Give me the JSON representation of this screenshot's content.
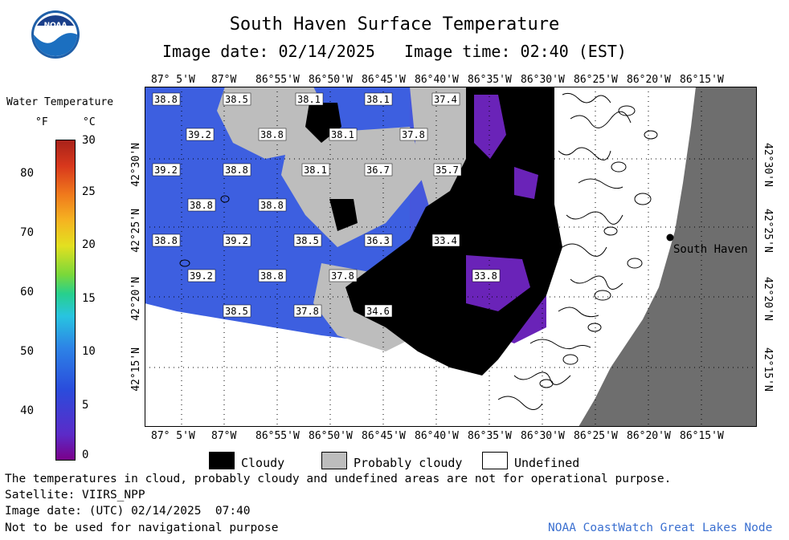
{
  "header": {
    "title": "South Haven Surface Temperature",
    "image_date_label": "Image date: 02/14/2025",
    "image_time_label": "Image time: 02:40 (EST)",
    "logo_text": "NOAA"
  },
  "legend": {
    "title": "Water Temperature",
    "unit_f": "°F",
    "unit_c": "°C",
    "f_ticks": [
      "80",
      "70",
      "60",
      "50",
      "40"
    ],
    "c_ticks": [
      "30",
      "25",
      "20",
      "15",
      "10",
      "5",
      "0"
    ]
  },
  "map": {
    "lon_labels": [
      "87° 5'W",
      "87°W",
      "86°55'W",
      "86°50'W",
      "86°45'W",
      "86°40'W",
      "86°35'W",
      "86°30'W",
      "86°25'W",
      "86°20'W",
      "86°15'W"
    ],
    "lat_labels": [
      "42°30'N",
      "42°25'N",
      "42°20'N",
      "42°15'N"
    ],
    "city": "South Haven",
    "temps": [
      "38.8",
      "38.5",
      "38.1",
      "38.1",
      "37.4",
      "39.2",
      "38.8",
      "38.1",
      "37.8",
      "39.2",
      "38.8",
      "38.1",
      "36.7",
      "35.7",
      "38.8",
      "38.8",
      "38.8",
      "39.2",
      "38.5",
      "36.3",
      "33.4",
      "39.2",
      "38.8",
      "37.8",
      "33.8",
      "38.5",
      "37.8",
      "34.6"
    ],
    "colors": {
      "water": "#3d5fe0",
      "cold": "#6a23b8",
      "cloud": "#000000",
      "probably_cloudy": "#bdbdbd",
      "land": "#6e6e6e"
    }
  },
  "cloud_legend": {
    "cloudy": "Cloudy",
    "probably_cloudy": "Probably cloudy",
    "undefined": "Undefined"
  },
  "footer": {
    "disclaimer": "The temperatures in cloud, probably cloudy and undefined areas are not for operational purpose.",
    "satellite": "Satellite: VIIRS_NPP",
    "utc_date": "Image date: (UTC) 02/14/2025  07:40",
    "nav_warning": "Not to be used for navigational purpose",
    "credit": "NOAA CoastWatch Great Lakes Node"
  }
}
